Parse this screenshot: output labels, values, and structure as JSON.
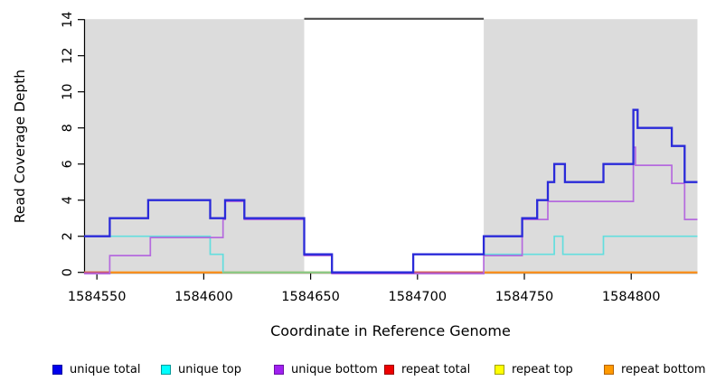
{
  "chart_data": {
    "type": "line",
    "subtype": "step-coverage-plot",
    "title": "",
    "xlabel": "Coordinate in Reference Genome",
    "ylabel": "Read Coverage Depth",
    "xlim": [
      1584544,
      1584831
    ],
    "ylim": [
      0,
      14
    ],
    "x_ticks": [
      1584550,
      1584600,
      1584650,
      1584700,
      1584750,
      1584800
    ],
    "y_ticks": [
      0,
      2,
      4,
      6,
      8,
      10,
      12,
      14
    ],
    "grid": false,
    "band_color": "#dcdcdc",
    "shaded_regions": [
      [
        1584544,
        1584647
      ],
      [
        1584731,
        1584831
      ]
    ],
    "gap_top_line": {
      "from": 1584647,
      "to": 1584731,
      "y": 14,
      "color": "#4d4d4d"
    },
    "legend_position": "bottom",
    "series": [
      {
        "name": "unique total",
        "color": "#2a2ad9",
        "legend_color": "#0000ee",
        "legend_border": "#0000a0",
        "points": [
          [
            1584544,
            2
          ],
          [
            1584556,
            3
          ],
          [
            1584574,
            4
          ],
          [
            1584603,
            3
          ],
          [
            1584610,
            4
          ],
          [
            1584619,
            3
          ],
          [
            1584647,
            1
          ],
          [
            1584660,
            0
          ],
          [
            1584698,
            1
          ],
          [
            1584731,
            2
          ],
          [
            1584749,
            3
          ],
          [
            1584756,
            4
          ],
          [
            1584761,
            5
          ],
          [
            1584764,
            6
          ],
          [
            1584769,
            5
          ],
          [
            1584787,
            6
          ],
          [
            1584801,
            9
          ],
          [
            1584803,
            8
          ],
          [
            1584819,
            7
          ],
          [
            1584825,
            5
          ]
        ]
      },
      {
        "name": "unique top",
        "color": "#63dede",
        "legend_color": "#00ffff",
        "legend_border": "#009a9a",
        "points": [
          [
            1584544,
            2
          ],
          [
            1584603,
            1
          ],
          [
            1584609,
            0
          ],
          [
            1584698,
            1
          ],
          [
            1584764,
            2
          ],
          [
            1584768,
            1
          ],
          [
            1584787,
            2
          ]
        ]
      },
      {
        "name": "unique bottom",
        "color": "#b56ade",
        "legend_color": "#a020f0",
        "legend_border": "#6c12a5",
        "points": [
          [
            1584544,
            0
          ],
          [
            1584556,
            1
          ],
          [
            1584575,
            2
          ],
          [
            1584609,
            3
          ],
          [
            1584610,
            4
          ],
          [
            1584619,
            3
          ],
          [
            1584647,
            1
          ],
          [
            1584660,
            0
          ],
          [
            1584731,
            1
          ],
          [
            1584749,
            3
          ],
          [
            1584761,
            4
          ],
          [
            1584801,
            7
          ],
          [
            1584802,
            6
          ],
          [
            1584819,
            5
          ],
          [
            1584825,
            3
          ]
        ]
      },
      {
        "name": "repeat total",
        "color": "#cc2244",
        "legend_color": "#ee0000",
        "legend_border": "#990000",
        "points": [
          [
            1584544,
            0
          ]
        ]
      },
      {
        "name": "repeat top",
        "color": "#eeee22",
        "legend_color": "#ffff00",
        "legend_border": "#a0a000",
        "points": [
          [
            1584544,
            0
          ]
        ]
      },
      {
        "name": "repeat bottom",
        "color": "#ff9020",
        "legend_color": "#ff9900",
        "legend_border": "#b36200",
        "points": [
          [
            1584544,
            0
          ]
        ]
      }
    ],
    "baseline_segments": [
      {
        "from": 1584544,
        "to": 1584556,
        "color": "#c75573"
      },
      {
        "from": 1584609,
        "to": 1584698,
        "color": "#84cf90"
      },
      {
        "from": 1584698,
        "to": 1584731,
        "color": "#c75573"
      }
    ]
  }
}
